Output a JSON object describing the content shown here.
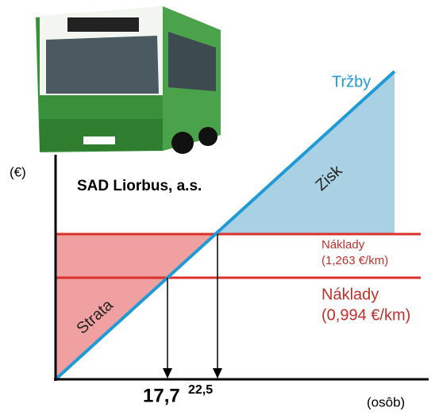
{
  "y_axis_label": "(€)",
  "x_axis_label": "(osôb)",
  "company": "SAD Liorbus, a.s.",
  "revenue_label": "Tržby",
  "profit_label": "Zisk",
  "loss_label": "Strata",
  "cost_high": {
    "label": "Náklady",
    "rate": "(1,263 €/km)"
  },
  "cost_low": {
    "label": "Náklady",
    "rate": "(0,994 €/km)"
  },
  "break_even_low": "17,7",
  "break_even_high": "22,5"
}
